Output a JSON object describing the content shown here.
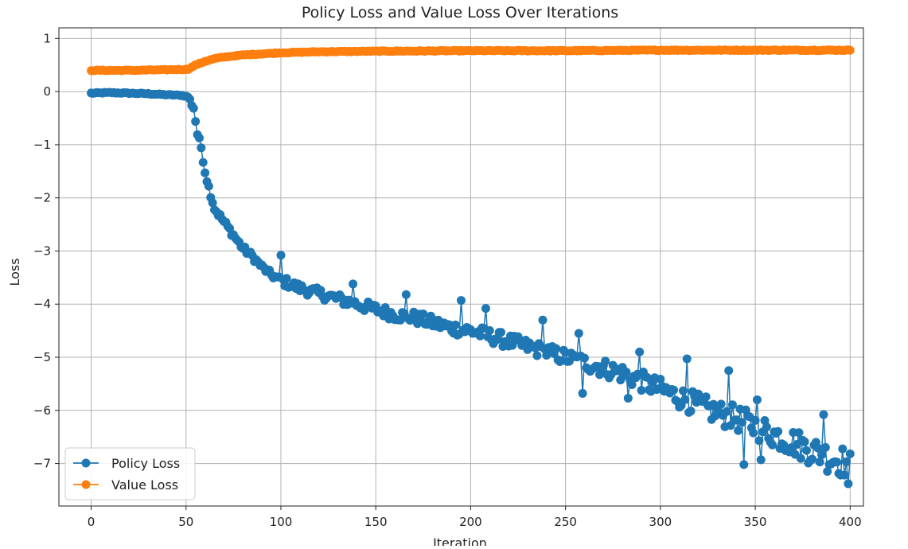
{
  "chart_data": {
    "type": "line",
    "title": "Policy Loss and Value Loss Over Iterations",
    "xlabel": "Iteration",
    "ylabel": "Loss",
    "xlim": [
      -17,
      407
    ],
    "ylim": [
      -7.8,
      1.2
    ],
    "xticks": [
      0,
      50,
      100,
      150,
      200,
      250,
      300,
      350,
      400
    ],
    "yticks": [
      1,
      0,
      -1,
      -2,
      -3,
      -4,
      -5,
      -6,
      -7
    ],
    "grid": true,
    "legend_position": "bottom-left",
    "marker": "circle",
    "x_range": [
      0,
      400
    ],
    "series": [
      {
        "name": "Policy Loss",
        "color": "#1f77b4",
        "keypoints": [
          [
            0,
            -0.03
          ],
          [
            10,
            -0.02
          ],
          [
            20,
            -0.03
          ],
          [
            30,
            -0.04
          ],
          [
            40,
            -0.06
          ],
          [
            48,
            -0.07
          ],
          [
            51,
            -0.1
          ],
          [
            54,
            -0.3
          ],
          [
            56,
            -0.8
          ],
          [
            58,
            -1.05
          ],
          [
            60,
            -1.5
          ],
          [
            62,
            -1.8
          ],
          [
            65,
            -2.2
          ],
          [
            70,
            -2.45
          ],
          [
            75,
            -2.7
          ],
          [
            80,
            -2.95
          ],
          [
            85,
            -3.1
          ],
          [
            90,
            -3.3
          ],
          [
            95,
            -3.45
          ],
          [
            100,
            -3.55
          ],
          [
            110,
            -3.7
          ],
          [
            120,
            -3.8
          ],
          [
            130,
            -3.9
          ],
          [
            140,
            -4.0
          ],
          [
            150,
            -4.1
          ],
          [
            160,
            -4.2
          ],
          [
            170,
            -4.25
          ],
          [
            180,
            -4.35
          ],
          [
            190,
            -4.45
          ],
          [
            200,
            -4.5
          ],
          [
            210,
            -4.6
          ],
          [
            220,
            -4.7
          ],
          [
            230,
            -4.8
          ],
          [
            240,
            -4.9
          ],
          [
            250,
            -5.0
          ],
          [
            260,
            -5.1
          ],
          [
            270,
            -5.2
          ],
          [
            280,
            -5.3
          ],
          [
            290,
            -5.45
          ],
          [
            300,
            -5.6
          ],
          [
            310,
            -5.75
          ],
          [
            320,
            -5.9
          ],
          [
            330,
            -6.05
          ],
          [
            340,
            -6.15
          ],
          [
            350,
            -6.3
          ],
          [
            360,
            -6.45
          ],
          [
            370,
            -6.6
          ],
          [
            380,
            -6.75
          ],
          [
            390,
            -6.9
          ],
          [
            400,
            -7.0
          ]
        ],
        "notable_points": [
          [
            100,
            -3.08
          ],
          [
            138,
            -3.62
          ],
          [
            166,
            -3.82
          ],
          [
            195,
            -3.93
          ],
          [
            208,
            -4.08
          ],
          [
            238,
            -4.3
          ],
          [
            257,
            -4.55
          ],
          [
            259,
            -5.68
          ],
          [
            283,
            -5.77
          ],
          [
            289,
            -4.9
          ],
          [
            314,
            -5.03
          ],
          [
            336,
            -5.25
          ],
          [
            344,
            -7.02
          ],
          [
            351,
            -5.8
          ],
          [
            353,
            -6.93
          ],
          [
            386,
            -6.08
          ],
          [
            399,
            -7.38
          ],
          [
            401,
            -6.88
          ]
        ]
      },
      {
        "name": "Value Loss",
        "color": "#ff7f0e",
        "keypoints": [
          [
            0,
            0.4
          ],
          [
            20,
            0.4
          ],
          [
            40,
            0.41
          ],
          [
            51,
            0.42
          ],
          [
            55,
            0.5
          ],
          [
            60,
            0.57
          ],
          [
            65,
            0.62
          ],
          [
            70,
            0.65
          ],
          [
            80,
            0.69
          ],
          [
            90,
            0.71
          ],
          [
            100,
            0.73
          ],
          [
            120,
            0.75
          ],
          [
            150,
            0.76
          ],
          [
            200,
            0.77
          ],
          [
            250,
            0.77
          ],
          [
            300,
            0.78
          ],
          [
            350,
            0.78
          ],
          [
            400,
            0.78
          ]
        ],
        "notable_points": []
      }
    ]
  }
}
